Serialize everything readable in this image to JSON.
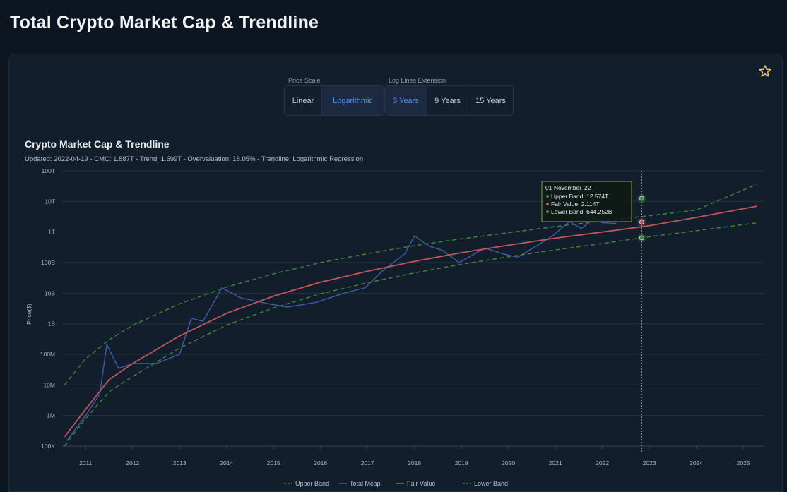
{
  "page": {
    "title": "Total Crypto Market Cap & Trendline"
  },
  "controls": {
    "price_scale": {
      "label": "Price Scale",
      "options": [
        "Linear",
        "Logarithmic"
      ],
      "selected": "Logarithmic"
    },
    "log_extension": {
      "label": "Log Lines Extension",
      "options": [
        "3 Years",
        "9 Years",
        "15 Years"
      ],
      "selected": "3 Years"
    }
  },
  "colors": {
    "upper_band": "#3d8a3a",
    "total_mcap": "#3a5fa8",
    "fair_value": "#c0555a",
    "lower_band": "#3d8a3a",
    "accent": "#4f8ff0"
  },
  "chart_data": {
    "type": "line",
    "title": "Crypto Market Cap & Trendline",
    "subtitle": "Updated: 2022-04-19 - CMC: 1.887T - Trend: 1.599T - Overvaluation: 18.05% - Trendline: Logarithmic Regression",
    "ylabel": "Price($)",
    "y_scale": "log",
    "grid": true,
    "legend_position": "bottom",
    "y_ticks": [
      "100K",
      "1M",
      "10M",
      "100M",
      "1B",
      "10B",
      "100B",
      "1T",
      "10T",
      "100T"
    ],
    "x_ticks": [
      "2011",
      "2012",
      "2013",
      "2014",
      "2015",
      "2016",
      "2017",
      "2018",
      "2019",
      "2020",
      "2021",
      "2022",
      "2023",
      "2024",
      "2025"
    ],
    "series": [
      {
        "name": "Upper Band",
        "style": "dashed",
        "points": [
          [
            2010.55,
            10000000.0
          ],
          [
            2011.0,
            71000000.0
          ],
          [
            2011.5,
            300000000.0
          ],
          [
            2012,
            890000000.0
          ],
          [
            2013,
            4500000000.0
          ],
          [
            2014,
            15800000000.0
          ],
          [
            2015,
            43000000000.0
          ],
          [
            2016,
            100000000000.0
          ],
          [
            2017,
            195000000000.0
          ],
          [
            2018,
            360000000000.0
          ],
          [
            2019,
            600000000000.0
          ],
          [
            2020,
            950000000000.0
          ],
          [
            2021,
            1500000000000.0
          ],
          [
            2022,
            2300000000000.0
          ],
          [
            2022.84,
            12600000000000.0
          ],
          [
            2023,
            3400000000000.0
          ],
          [
            2024,
            5200000000000.0
          ],
          [
            2025.3,
            37000000000000.0
          ]
        ]
      },
      {
        "name": "Total Mcap",
        "style": "solid",
        "points": [
          [
            2010.6,
            150000.0
          ],
          [
            2011.0,
            1000000.0
          ],
          [
            2011.3,
            5000000.0
          ],
          [
            2011.45,
            210000000.0
          ],
          [
            2011.7,
            35000000.0
          ],
          [
            2012.0,
            50000000.0
          ],
          [
            2012.5,
            50000000.0
          ],
          [
            2013.0,
            100000000.0
          ],
          [
            2013.25,
            1500000000.0
          ],
          [
            2013.5,
            1200000000.0
          ],
          [
            2013.9,
            15000000000.0
          ],
          [
            2014.3,
            7000000000.0
          ],
          [
            2014.9,
            4500000000.0
          ],
          [
            2015.3,
            3500000000.0
          ],
          [
            2015.9,
            5000000000.0
          ],
          [
            2016.5,
            10000000000.0
          ],
          [
            2016.95,
            15000000000.0
          ],
          [
            2017.3,
            50000000000.0
          ],
          [
            2017.8,
            200000000000.0
          ],
          [
            2018.0,
            750000000000.0
          ],
          [
            2018.3,
            350000000000.0
          ],
          [
            2018.6,
            250000000000.0
          ],
          [
            2018.95,
            100000000000.0
          ],
          [
            2019.5,
            300000000000.0
          ],
          [
            2019.9,
            190000000000.0
          ],
          [
            2020.2,
            150000000000.0
          ],
          [
            2020.6,
            350000000000.0
          ],
          [
            2020.95,
            770000000000.0
          ],
          [
            2021.3,
            2200000000000.0
          ],
          [
            2021.55,
            1300000000000.0
          ],
          [
            2021.85,
            2900000000000.0
          ],
          [
            2022.0,
            2000000000000.0
          ],
          [
            2022.3,
            1900000000000.0
          ]
        ]
      },
      {
        "name": "Fair Value",
        "style": "solid",
        "points": [
          [
            2010.55,
            200000.0
          ],
          [
            2011.0,
            1600000.0
          ],
          [
            2011.5,
            15000000.0
          ],
          [
            2012,
            50000000.0
          ],
          [
            2013,
            400000000.0
          ],
          [
            2014,
            2200000000.0
          ],
          [
            2015,
            8000000000.0
          ],
          [
            2016,
            23000000000.0
          ],
          [
            2017,
            52000000000.0
          ],
          [
            2018,
            110000000000.0
          ],
          [
            2019,
            210000000000.0
          ],
          [
            2020,
            370000000000.0
          ],
          [
            2021,
            630000000000.0
          ],
          [
            2022,
            1000000000000.0
          ],
          [
            2022.84,
            2114000000000.0
          ],
          [
            2023,
            1600000000000.0
          ],
          [
            2024,
            3000000000000.0
          ],
          [
            2025.3,
            7000000000000.0
          ]
        ]
      },
      {
        "name": "Lower Band",
        "style": "dashed",
        "points": [
          [
            2010.55,
            100000.0
          ],
          [
            2011.0,
            800000.0
          ],
          [
            2011.5,
            6000000.0
          ],
          [
            2012,
            19000000.0
          ],
          [
            2013,
            160000000.0
          ],
          [
            2014,
            900000000.0
          ],
          [
            2015,
            3300000000.0
          ],
          [
            2016,
            9500000000.0
          ],
          [
            2017,
            22000000000.0
          ],
          [
            2018,
            46000000000.0
          ],
          [
            2019,
            88000000000.0
          ],
          [
            2020,
            155000000000.0
          ],
          [
            2021,
            260000000000.0
          ],
          [
            2022,
            420000000000.0
          ],
          [
            2022.84,
            644300000000.0
          ],
          [
            2023,
            700000000000.0
          ],
          [
            2024,
            1100000000000.0
          ],
          [
            2025.3,
            2000000000000.0
          ]
        ]
      }
    ],
    "crosshair": {
      "date": "01 November '22",
      "x": 2022.84,
      "items": [
        {
          "label": "Upper Band: 12.574T",
          "value": 12574000000000.0
        },
        {
          "label": "Fair Value: 2.114T",
          "value": 2114000000000.0
        },
        {
          "label": "Lower Band: 644.252B",
          "value": 644252000000.0
        }
      ]
    },
    "legend": [
      "Upper Band",
      "Total Mcap",
      "Fair Value",
      "Lower Band"
    ]
  }
}
